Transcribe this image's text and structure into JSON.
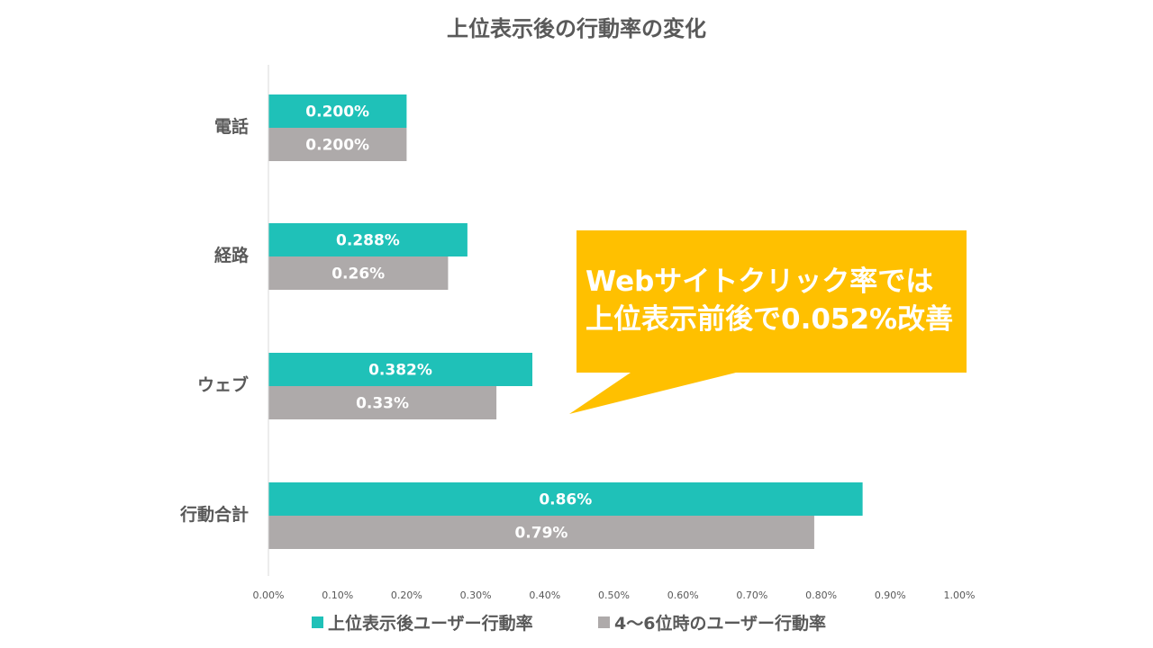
{
  "chart_data": {
    "type": "bar",
    "orientation": "horizontal",
    "title": "上位表示後の行動率の変化",
    "categories": [
      "電話",
      "経路",
      "ウェブ",
      "行動合計"
    ],
    "series": [
      {
        "name": "上位表示後ユーザー行動率",
        "color": "#1fc1b8",
        "values": [
          0.2,
          0.288,
          0.382,
          0.86
        ],
        "labels": [
          "0.200%",
          "0.288%",
          "0.382%",
          "0.86%"
        ]
      },
      {
        "name": "4〜6位時のユーザー行動率",
        "color": "#aeaaaa",
        "values": [
          0.2,
          0.26,
          0.33,
          0.79
        ],
        "labels": [
          "0.200%",
          "0.26%",
          "0.33%",
          "0.79%"
        ]
      }
    ],
    "xlim": [
      0,
      1.0
    ],
    "xticks": [
      0,
      0.1,
      0.2,
      0.3,
      0.4,
      0.5,
      0.6,
      0.7,
      0.8,
      0.9,
      1.0
    ],
    "xtick_labels": [
      "0.00%",
      "0.10%",
      "0.20%",
      "0.30%",
      "0.40%",
      "0.50%",
      "0.60%",
      "0.70%",
      "0.80%",
      "0.90%",
      "1.00%"
    ],
    "grid": false,
    "legend": "bottom",
    "annotation": {
      "lines": [
        "Webサイトクリック率では",
        "上位表示前後で0.052%改善"
      ],
      "color": "#ffc000"
    }
  }
}
